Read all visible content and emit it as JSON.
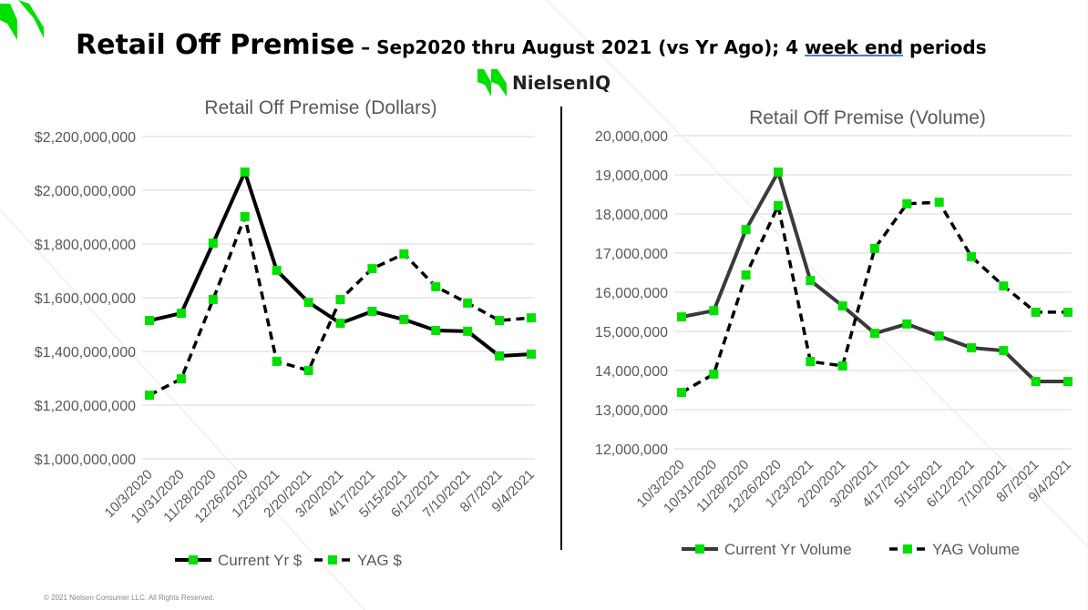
{
  "header": {
    "title_main": "Retail Off Premise",
    "title_sub_1": " – Sep2020 thru August 2021 (vs Yr Ago); 4 ",
    "title_sub_underlined": "week end",
    "title_sub_2": " periods",
    "brand": "NielsenIQ"
  },
  "footer": {
    "copyright": "© 2021 Nielsen Consumer LLC. All Rights Reserved."
  },
  "colors": {
    "brand_green": "#00e000",
    "line_current_dollars": "#000000",
    "line_current_volume": "#3a3a3a",
    "line_yag": "#000000",
    "grid": "#d9d9d9",
    "text": "#595959"
  },
  "chart_data": [
    {
      "type": "line",
      "title": "Retail Off Premise (Dollars)",
      "categories": [
        "10/3/2020",
        "10/31/2020",
        "11/28/2020",
        "12/26/2020",
        "1/23/2021",
        "2/20/2021",
        "3/20/2021",
        "4/17/2021",
        "5/15/2021",
        "6/12/2021",
        "7/10/2021",
        "8/7/2021",
        "9/4/2021"
      ],
      "ylim": [
        1000000000,
        2200000000
      ],
      "yticks": [
        1000000000,
        1200000000,
        1400000000,
        1600000000,
        1800000000,
        2000000000,
        2200000000
      ],
      "ytick_labels": [
        "$1,000,000,000",
        "$1,200,000,000",
        "$1,400,000,000",
        "$1,600,000,000",
        "$1,800,000,000",
        "$2,000,000,000",
        "$2,200,000,000"
      ],
      "grid": true,
      "legend": "bottom",
      "series": [
        {
          "name": "Current Yr $",
          "style": "solid",
          "values": [
            1515000000,
            1542000000,
            1803000000,
            2068000000,
            1702000000,
            1583000000,
            1505000000,
            1549000000,
            1519000000,
            1478000000,
            1475000000,
            1383000000,
            1390000000
          ]
        },
        {
          "name": "YAG $",
          "style": "dashed",
          "values": [
            1237000000,
            1298000000,
            1593000000,
            1902000000,
            1363000000,
            1329000000,
            1593000000,
            1708000000,
            1763000000,
            1641000000,
            1580000000,
            1515000000,
            1525000000
          ]
        }
      ]
    },
    {
      "type": "line",
      "title": "Retail Off Premise (Volume)",
      "categories": [
        "10/3/2020",
        "10/31/2020",
        "11/28/2020",
        "12/26/2020",
        "1/23/2021",
        "2/20/2021",
        "3/20/2021",
        "4/17/2021",
        "5/15/2021",
        "6/12/2021",
        "7/10/2021",
        "8/7/2021",
        "9/4/2021"
      ],
      "ylim": [
        12000000,
        20000000
      ],
      "yticks": [
        12000000,
        13000000,
        14000000,
        15000000,
        16000000,
        17000000,
        18000000,
        19000000,
        20000000
      ],
      "ytick_labels": [
        "12,000,000",
        "13,000,000",
        "14,000,000",
        "15,000,000",
        "16,000,000",
        "17,000,000",
        "18,000,000",
        "19,000,000",
        "20,000,000"
      ],
      "grid": true,
      "legend": "bottom",
      "series": [
        {
          "name": "Current Yr Volume",
          "style": "solid",
          "values": [
            15370000,
            15530000,
            17600000,
            19070000,
            16300000,
            15650000,
            14950000,
            15190000,
            14880000,
            14580000,
            14510000,
            13720000,
            13720000
          ]
        },
        {
          "name": "YAG Volume",
          "style": "dashed",
          "values": [
            13440000,
            13910000,
            16440000,
            18210000,
            14230000,
            14120000,
            17120000,
            18260000,
            18300000,
            16910000,
            16160000,
            15490000,
            15490000
          ]
        }
      ]
    }
  ]
}
